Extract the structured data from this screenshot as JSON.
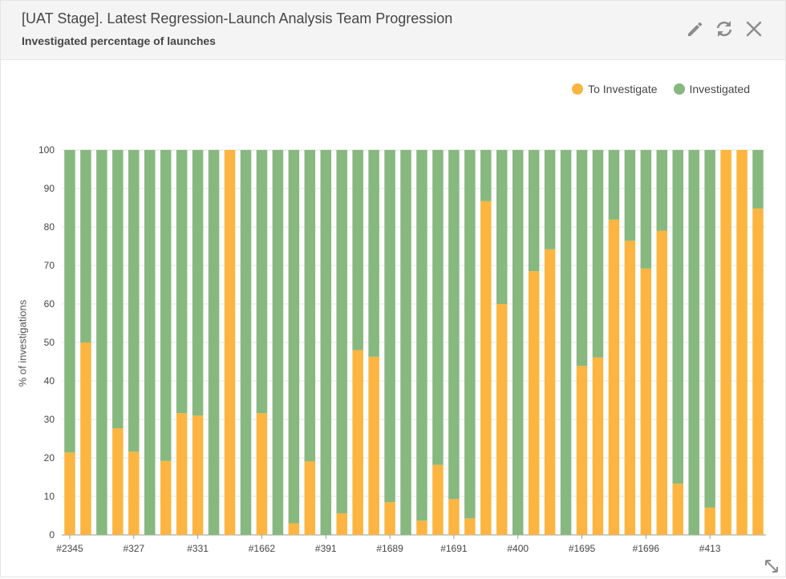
{
  "header": {
    "title": "[UAT Stage]. Latest Regression-Launch Analysis Team Progression",
    "subtitle": "Investigated percentage of launches"
  },
  "colors": {
    "to_investigate": "#fbb540",
    "investigated": "#87b87f",
    "grid": "#e6e6e6",
    "axis": "#999999"
  },
  "chart_data": {
    "type": "bar",
    "stacked": true,
    "title": "",
    "xlabel": "",
    "ylabel": "% of investigations",
    "ylim": [
      0,
      100
    ],
    "yticks": [
      0,
      10,
      20,
      30,
      40,
      50,
      60,
      70,
      80,
      90,
      100
    ],
    "grid": true,
    "legend_position": "top-right",
    "x_tick_labels": [
      "#2345",
      "#327",
      "#331",
      "#1662",
      "#391",
      "#1689",
      "#1691",
      "#400",
      "#1695",
      "#1696",
      "#413"
    ],
    "x_tick_every": 4,
    "series": [
      {
        "name": "To Investigate",
        "values": [
          21.4,
          50,
          0,
          27.7,
          21.6,
          0,
          19.2,
          31.6,
          31.0,
          0,
          100,
          0,
          31.6,
          0,
          3.0,
          19.1,
          0,
          5.6,
          48.0,
          46.3,
          8.5,
          0,
          3.7,
          18.2,
          9.3,
          4.3,
          86.7,
          60,
          0,
          68.5,
          74.2,
          0,
          43.9,
          46.1,
          81.9,
          76.4,
          69.2,
          79.0,
          13.3,
          0,
          7.1,
          100,
          100,
          84.8
        ]
      },
      {
        "name": "Investigated",
        "values": [
          78.6,
          50,
          100,
          72.3,
          78.4,
          100,
          80.8,
          68.4,
          69.0,
          100,
          0,
          100,
          68.4,
          100,
          97.0,
          80.9,
          100,
          94.4,
          52.0,
          53.7,
          91.5,
          100,
          96.3,
          81.8,
          90.7,
          95.7,
          13.3,
          40,
          100,
          31.5,
          25.8,
          100,
          56.1,
          53.9,
          18.1,
          23.6,
          30.8,
          21.0,
          86.7,
          100,
          92.9,
          0,
          0,
          15.2
        ]
      }
    ]
  }
}
